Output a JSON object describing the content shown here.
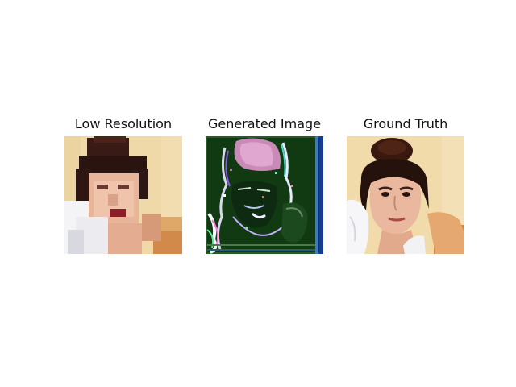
{
  "figure": {
    "panels": [
      {
        "title": "Low Resolution"
      },
      {
        "title": "Generated Image"
      },
      {
        "title": "Ground Truth"
      }
    ]
  }
}
